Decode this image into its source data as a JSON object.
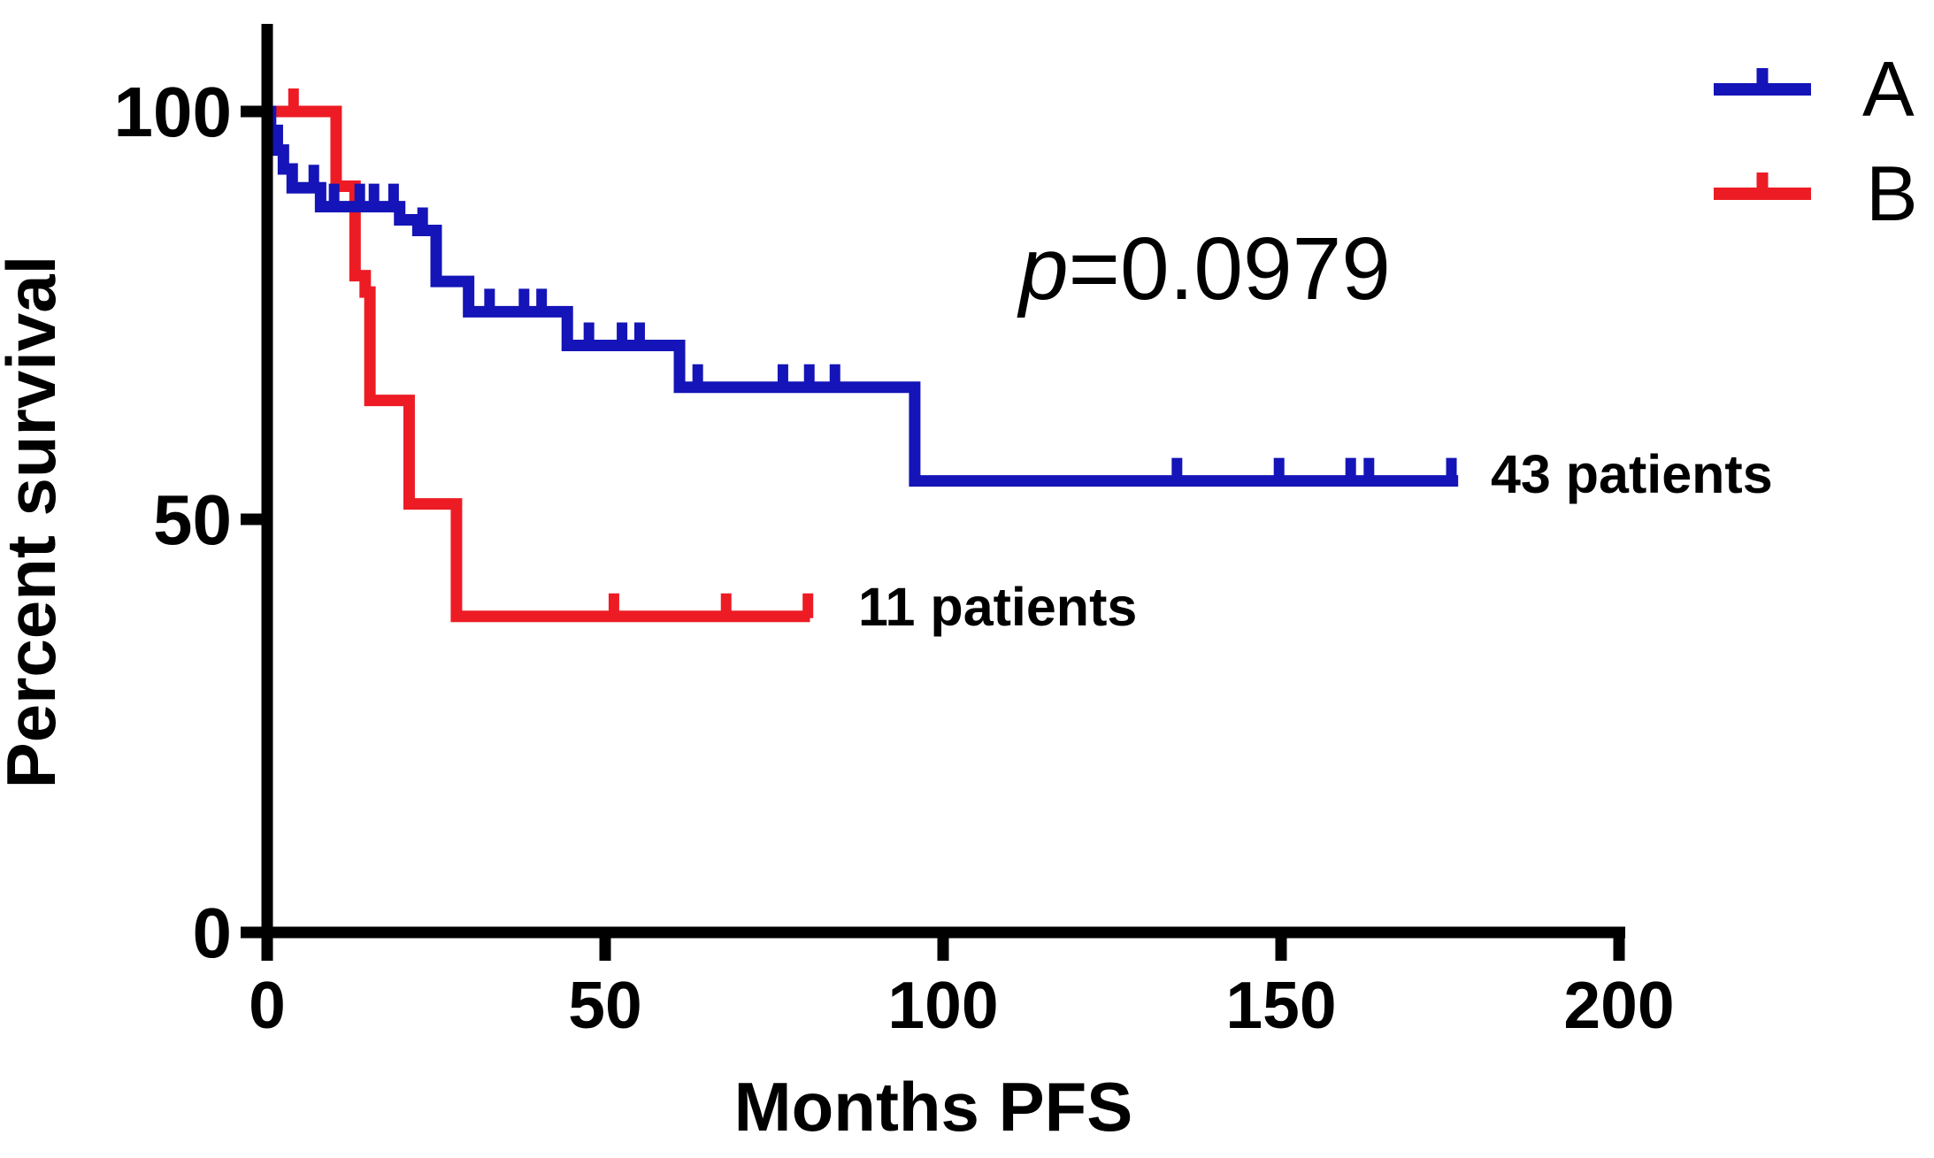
{
  "figure": {
    "background": "#ffffff"
  },
  "colors": {
    "series_a": "#1414b8",
    "series_b": "#ed1c24",
    "axis": "#000000"
  },
  "axes": {
    "x": {
      "title": "Months PFS",
      "range": [
        0,
        200
      ],
      "tick_labels": [
        "0",
        "50",
        "100",
        "150",
        "200"
      ]
    },
    "y": {
      "title": "Percent survival",
      "range": [
        0,
        100
      ],
      "tick_labels": [
        "0",
        "50",
        "100"
      ]
    }
  },
  "annotations": {
    "p_italic": "p",
    "p_rest": "=0.0979",
    "group_a_patients": "43 patients",
    "group_b_patients": "11 patients"
  },
  "legend": [
    {
      "name": "A",
      "color": "#1414b8"
    },
    {
      "name": "B",
      "color": "#ed1c24"
    }
  ],
  "chart_data": {
    "type": "line",
    "subtype": "kaplan-meier-step",
    "title": "",
    "xlabel": "Months PFS",
    "ylabel": "Percent survival",
    "xlim": [
      0,
      200
    ],
    "ylim": [
      0,
      100
    ],
    "legend_position": "top-right",
    "grid": false,
    "p_value_text": "p=0.0979",
    "series": [
      {
        "name": "A",
        "color": "#1414b8",
        "n_label": "43 patients",
        "start": [
          0,
          100
        ],
        "steps": [
          [
            0.5,
            97.7
          ],
          [
            1.5,
            95.3
          ],
          [
            2.4,
            93.0
          ],
          [
            3.7,
            90.7
          ],
          [
            7.9,
            88.4
          ],
          [
            19.6,
            86.8
          ],
          [
            22.3,
            85.5
          ],
          [
            25.0,
            79.3
          ],
          [
            29.8,
            75.6
          ],
          [
            44.4,
            71.5
          ],
          [
            61.0,
            66.4
          ],
          [
            95.8,
            55.0
          ]
        ],
        "end_month": 176.2,
        "censor_months": [
          6.9,
          9.9,
          13.7,
          15.8,
          18.7,
          23.0,
          32.9,
          38.0,
          40.6,
          47.6,
          52.5,
          55.1,
          63.7,
          76.3,
          80.2,
          84.0,
          134.6,
          149.7,
          160.3,
          163.0,
          175.2
        ]
      },
      {
        "name": "B",
        "color": "#ed1c24",
        "n_label": "11 patients",
        "start": [
          0,
          100
        ],
        "steps": [
          [
            10.2,
            90.9
          ],
          [
            13.0,
            80.0
          ],
          [
            14.5,
            78.0
          ],
          [
            15.2,
            64.8
          ],
          [
            21.0,
            52.2
          ],
          [
            28.0,
            38.5
          ]
        ],
        "end_month": 80.3,
        "censor_months": [
          3.9,
          51.3,
          67.9,
          80.0
        ]
      }
    ]
  }
}
